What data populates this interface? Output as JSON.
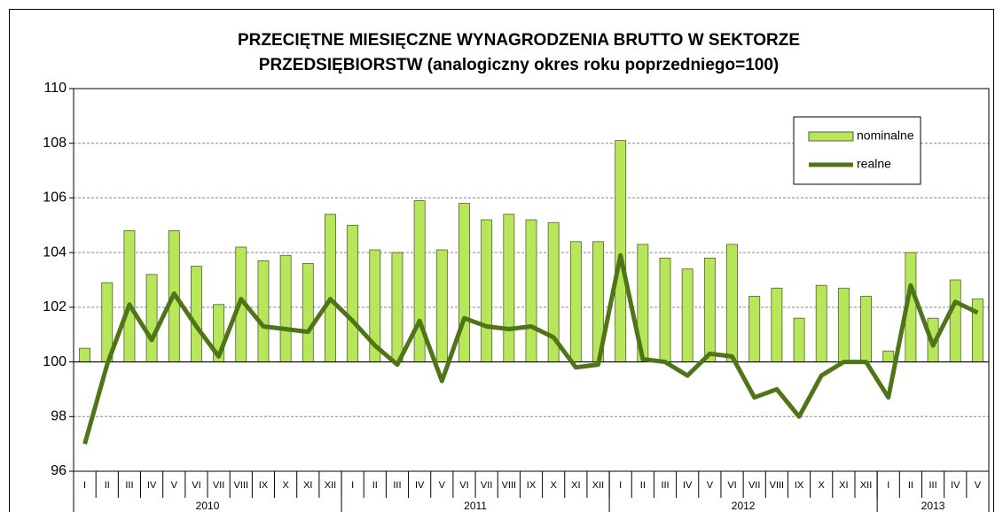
{
  "chart_data": {
    "type": "bar_line",
    "title": [
      "PRZECIĘTNE MIESIĘCZNE WYNAGRODZENIA BRUTTO W SEKTORZE",
      "PRZEDSIĘBIORSTW (analogiczny okres roku poprzedniego=100)"
    ],
    "category_groups": [
      {
        "label": "2010",
        "categories": [
          "I",
          "II",
          "III",
          "IV",
          "V",
          "VI",
          "VII",
          "VIII",
          "IX",
          "X",
          "XI",
          "XII"
        ]
      },
      {
        "label": "2011",
        "categories": [
          "I",
          "II",
          "III",
          "IV",
          "V",
          "VI",
          "VII",
          "VIII",
          "IX",
          "X",
          "XI",
          "XII"
        ]
      },
      {
        "label": "2012",
        "categories": [
          "I",
          "II",
          "III",
          "IV",
          "V",
          "VI",
          "VII",
          "VIII",
          "IX",
          "X",
          "XI",
          "XII"
        ]
      },
      {
        "label": "2013",
        "categories": [
          "I",
          "II",
          "III",
          "IV",
          "V"
        ]
      }
    ],
    "series": [
      {
        "name": "nominalne",
        "kind": "bar",
        "color": "#b8e65a",
        "edge": "#4f6228",
        "values": [
          100.5,
          102.9,
          104.8,
          103.2,
          104.8,
          103.5,
          102.1,
          104.2,
          103.7,
          103.9,
          103.6,
          105.4,
          105.0,
          104.1,
          104.0,
          105.9,
          104.1,
          105.8,
          105.2,
          105.4,
          105.2,
          105.1,
          104.4,
          104.4,
          108.1,
          104.3,
          103.8,
          103.4,
          103.8,
          104.3,
          102.4,
          102.7,
          101.6,
          102.8,
          102.7,
          102.4,
          100.4,
          104.0,
          101.6,
          103.0,
          102.3
        ]
      },
      {
        "name": "realne",
        "kind": "line",
        "color": "#4f7518",
        "values": [
          97.0,
          99.9,
          102.1,
          100.8,
          102.5,
          101.3,
          100.2,
          102.3,
          101.3,
          101.2,
          101.1,
          102.3,
          101.5,
          100.6,
          99.9,
          101.5,
          99.3,
          101.6,
          101.3,
          101.2,
          101.3,
          100.9,
          99.8,
          99.9,
          103.9,
          100.1,
          100.0,
          99.5,
          100.3,
          100.2,
          98.7,
          99.0,
          98.0,
          99.5,
          100.0,
          100.0,
          98.7,
          102.8,
          100.6,
          102.2,
          101.8
        ]
      }
    ],
    "ylim": [
      96,
      110
    ],
    "yticks": [
      96,
      98,
      100,
      102,
      104,
      106,
      108,
      110
    ],
    "axis_crosses": 100,
    "grid": true,
    "legend": "upper right"
  }
}
